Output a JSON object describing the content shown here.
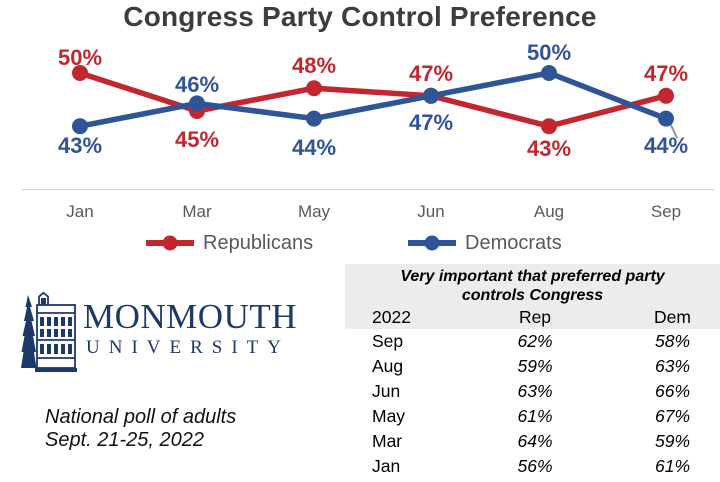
{
  "chart_data": {
    "type": "line",
    "title": "Congress Party Control Preference",
    "x": [
      "Jan",
      "Mar",
      "May",
      "Jun",
      "Aug",
      "Sep"
    ],
    "series": [
      {
        "name": "Republicans",
        "color": "#c1272d",
        "values": [
          50,
          45,
          48,
          47,
          43,
          47
        ]
      },
      {
        "name": "Democrats",
        "color": "#2f5597",
        "values": [
          43,
          46,
          44,
          47,
          50,
          44
        ]
      }
    ],
    "value_suffix": "%",
    "ylim": [
      41,
      52
    ],
    "grid": false,
    "legend_position": "bottom"
  },
  "table": {
    "title": "Very important that preferred party\ncontrols Congress",
    "columns": [
      "2022",
      "Rep",
      "Dem"
    ],
    "rows": [
      [
        "Sep",
        "62%",
        "58%"
      ],
      [
        "Aug",
        "59%",
        "63%"
      ],
      [
        "Jun",
        "63%",
        "66%"
      ],
      [
        "May",
        "61%",
        "67%"
      ],
      [
        "Mar",
        "64%",
        "59%"
      ],
      [
        "Jan",
        "56%",
        "61%"
      ]
    ]
  },
  "logo": {
    "name": "MONMOUTH",
    "subname": "UNIVERSITY"
  },
  "caption": {
    "line1": "National poll of adults",
    "line2": "Sept. 21-25, 2022"
  },
  "colors": {
    "republican": "#c1272d",
    "democrat": "#2f5597",
    "title_text": "#3d3d3d",
    "axis_text": "#595959",
    "divider": "#d6d6d6",
    "table_header_bg": "#ececec",
    "logo_navy": "#1c3a67",
    "pin_gray": "#929292"
  }
}
